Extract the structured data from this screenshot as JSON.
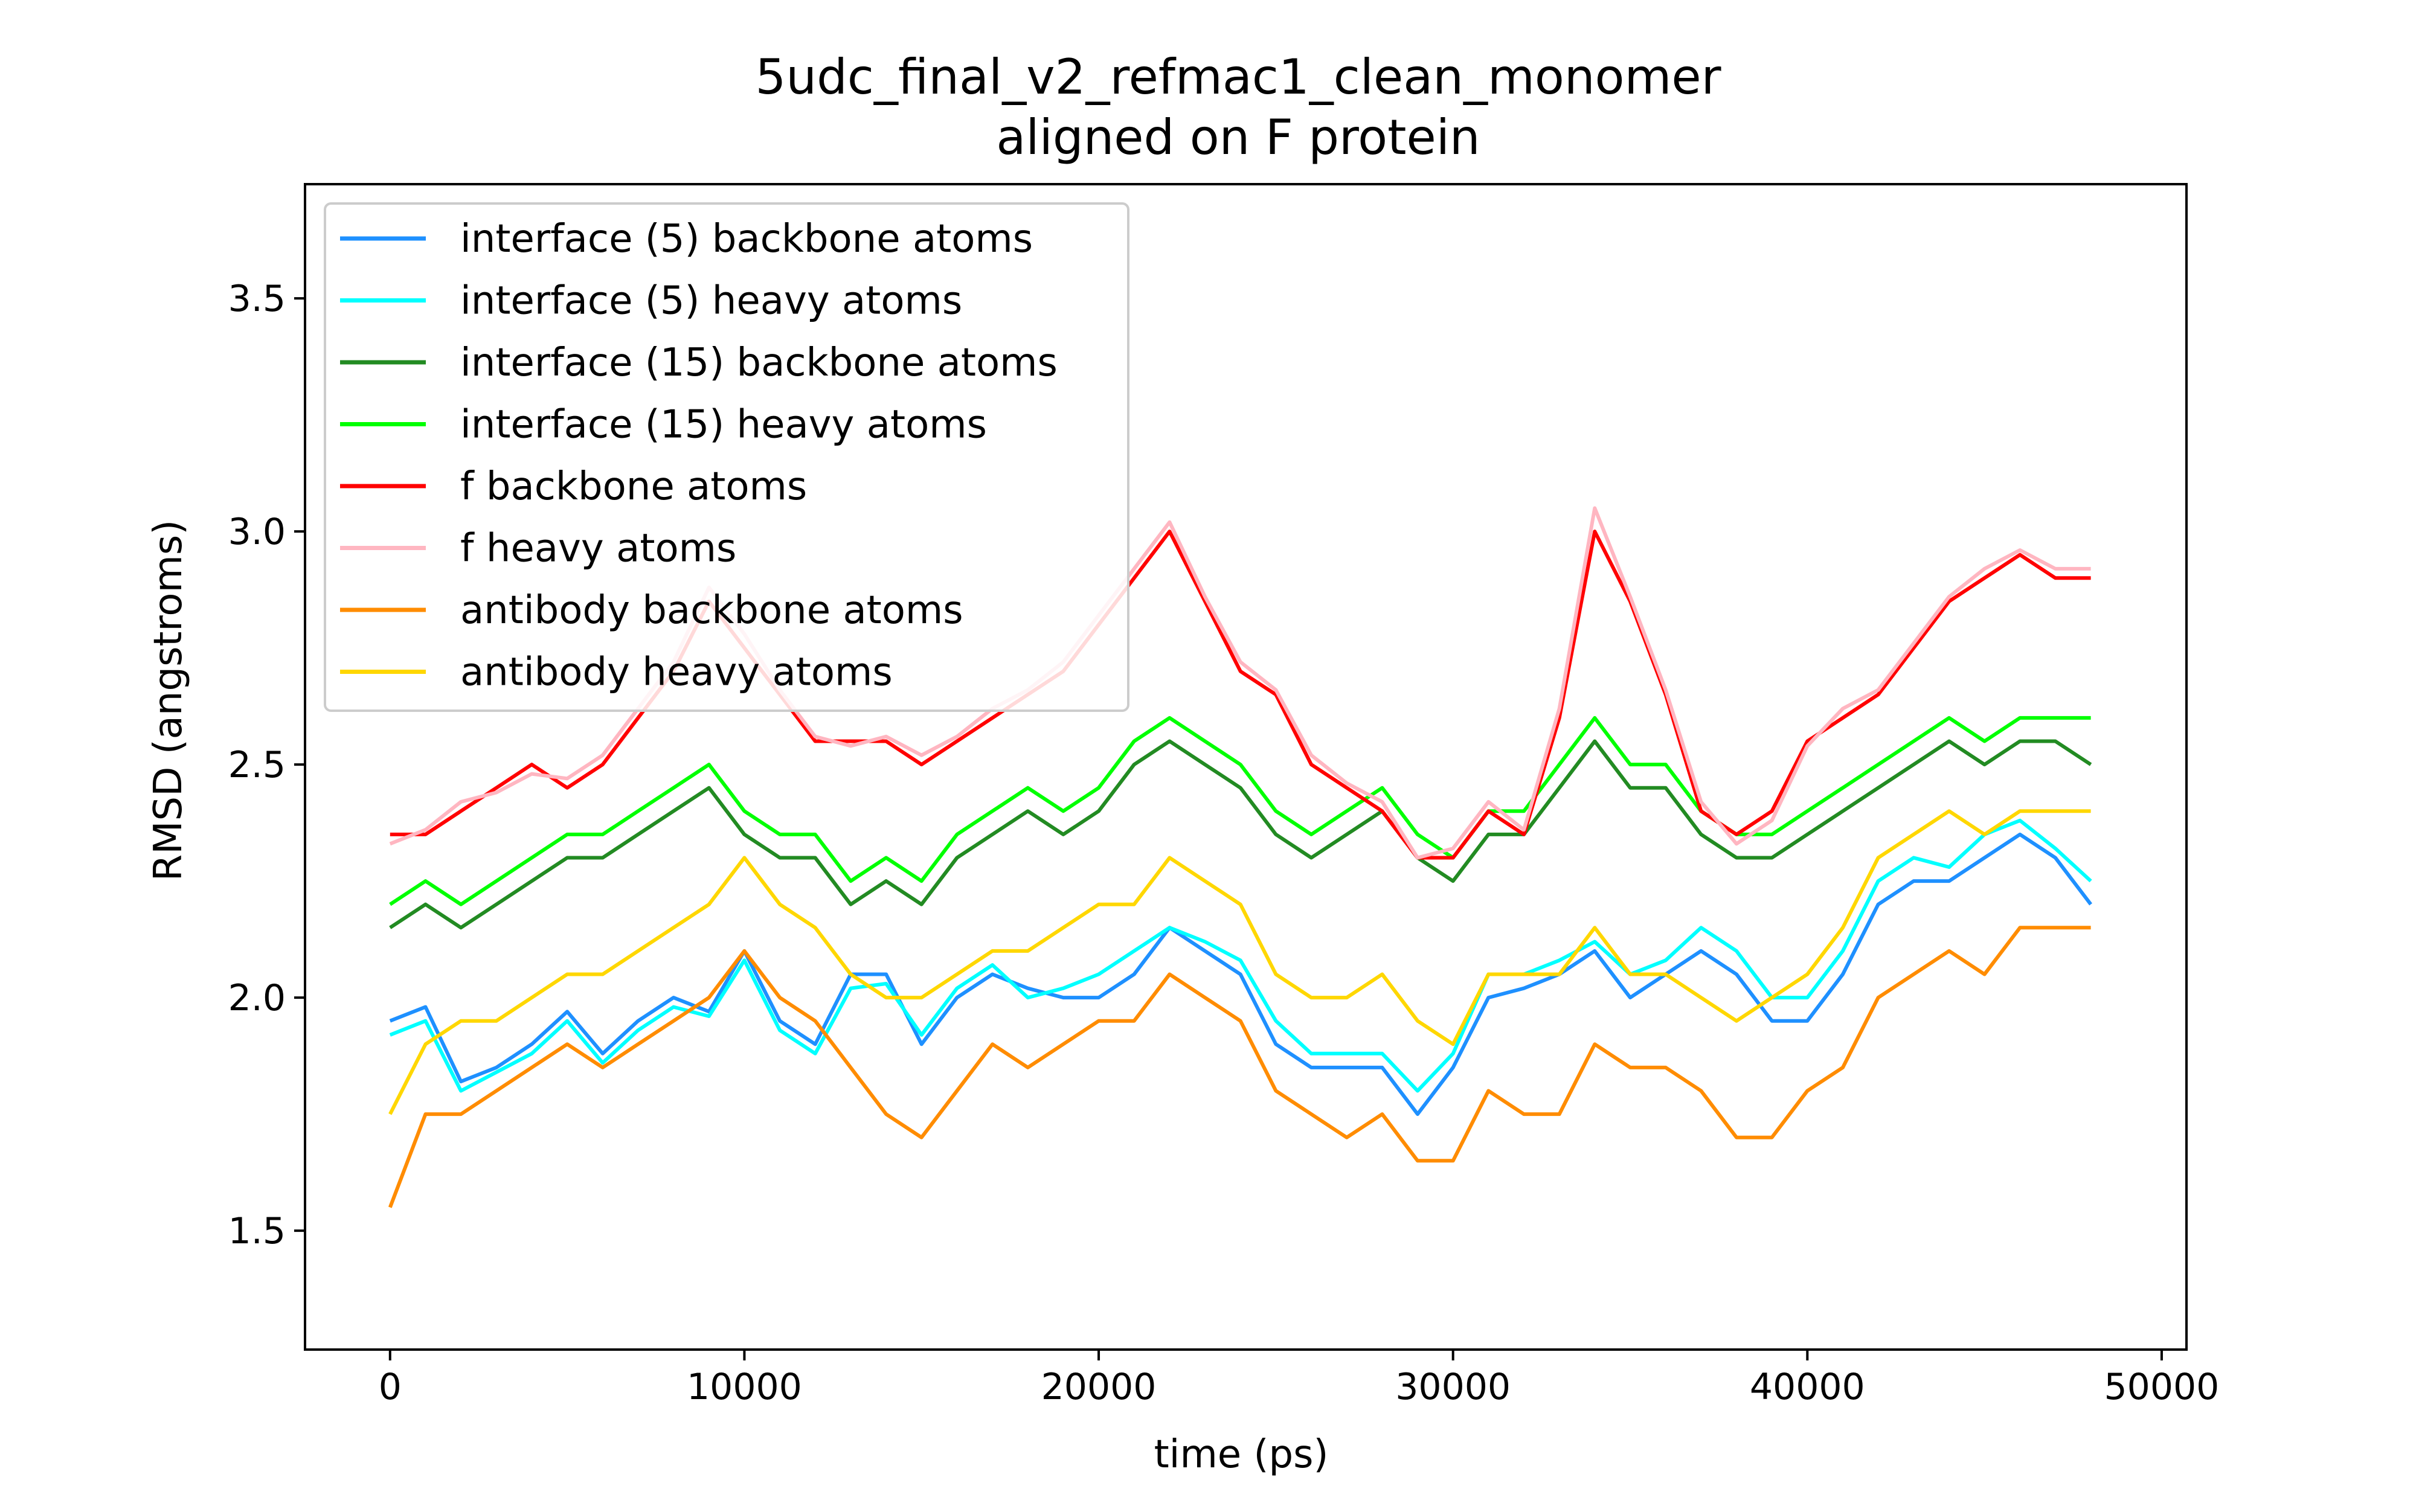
{
  "chart_data": {
    "type": "line",
    "title": "5udc_final_v2_refmac1_clean_monomer",
    "subtitle": "aligned on F protein",
    "xlabel": "time (ps)",
    "ylabel": "RMSD (angstroms)",
    "xlim": [
      -2400,
      50700
    ],
    "ylim": [
      1.245,
      3.745
    ],
    "x_ticks": [
      0,
      10000,
      20000,
      30000,
      40000,
      50000
    ],
    "x_tick_labels": [
      "0",
      "10000",
      "20000",
      "30000",
      "40000",
      "50000"
    ],
    "y_ticks": [
      1.5,
      2.0,
      2.5,
      3.0,
      3.5
    ],
    "y_tick_labels": [
      "1.5",
      "2.0",
      "2.5",
      "3.0",
      "3.5"
    ],
    "grid": false,
    "legend_position": "top-left",
    "sampled_step_ps": 1000,
    "series": [
      {
        "name": "interface (5) backbone atoms",
        "color": "#1e90ff",
        "values": [
          1.95,
          1.98,
          1.82,
          1.85,
          1.9,
          1.97,
          1.88,
          1.95,
          2.0,
          1.97,
          2.1,
          1.95,
          1.9,
          2.05,
          2.05,
          1.9,
          2.0,
          2.05,
          2.02,
          2.0,
          2.0,
          2.05,
          2.15,
          2.1,
          2.05,
          1.9,
          1.85,
          1.85,
          1.85,
          1.75,
          1.85,
          2.0,
          2.02,
          2.05,
          2.1,
          2.0,
          2.05,
          2.1,
          2.05,
          1.95,
          1.95,
          2.05,
          2.2,
          2.25,
          2.25,
          2.3,
          2.35,
          2.3,
          2.2
        ]
      },
      {
        "name": "interface (5) heavy atoms",
        "color": "#00ffff",
        "values": [
          1.92,
          1.95,
          1.8,
          1.84,
          1.88,
          1.95,
          1.86,
          1.93,
          1.98,
          1.96,
          2.08,
          1.93,
          1.88,
          2.02,
          2.03,
          1.92,
          2.02,
          2.07,
          2.0,
          2.02,
          2.05,
          2.1,
          2.15,
          2.12,
          2.08,
          1.95,
          1.88,
          1.88,
          1.88,
          1.8,
          1.88,
          2.05,
          2.05,
          2.08,
          2.12,
          2.05,
          2.08,
          2.15,
          2.1,
          2.0,
          2.0,
          2.1,
          2.25,
          2.3,
          2.28,
          2.35,
          2.38,
          2.32,
          2.25
        ]
      },
      {
        "name": "interface (15) backbone atoms",
        "color": "#228b22",
        "values": [
          2.15,
          2.2,
          2.15,
          2.2,
          2.25,
          2.3,
          2.3,
          2.35,
          2.4,
          2.45,
          2.35,
          2.3,
          2.3,
          2.2,
          2.25,
          2.2,
          2.3,
          2.35,
          2.4,
          2.35,
          2.4,
          2.5,
          2.55,
          2.5,
          2.45,
          2.35,
          2.3,
          2.35,
          2.4,
          2.3,
          2.25,
          2.35,
          2.35,
          2.45,
          2.55,
          2.45,
          2.45,
          2.35,
          2.3,
          2.3,
          2.35,
          2.4,
          2.45,
          2.5,
          2.55,
          2.5,
          2.55,
          2.55,
          2.5
        ]
      },
      {
        "name": "interface (15) heavy atoms",
        "color": "#00ff00",
        "values": [
          2.2,
          2.25,
          2.2,
          2.25,
          2.3,
          2.35,
          2.35,
          2.4,
          2.45,
          2.5,
          2.4,
          2.35,
          2.35,
          2.25,
          2.3,
          2.25,
          2.35,
          2.4,
          2.45,
          2.4,
          2.45,
          2.55,
          2.6,
          2.55,
          2.5,
          2.4,
          2.35,
          2.4,
          2.45,
          2.35,
          2.3,
          2.4,
          2.4,
          2.5,
          2.6,
          2.5,
          2.5,
          2.4,
          2.35,
          2.35,
          2.4,
          2.45,
          2.5,
          2.55,
          2.6,
          2.55,
          2.6,
          2.6,
          2.6
        ]
      },
      {
        "name": "f backbone atoms",
        "color": "#ff0000",
        "values": [
          2.35,
          2.35,
          2.4,
          2.45,
          2.5,
          2.45,
          2.5,
          2.6,
          2.7,
          2.85,
          2.75,
          2.65,
          2.55,
          2.55,
          2.55,
          2.5,
          2.55,
          2.6,
          2.65,
          2.7,
          2.8,
          2.9,
          3.0,
          2.85,
          2.7,
          2.65,
          2.5,
          2.45,
          2.4,
          2.3,
          2.3,
          2.4,
          2.35,
          2.6,
          3.0,
          2.85,
          2.65,
          2.4,
          2.35,
          2.4,
          2.55,
          2.6,
          2.65,
          2.75,
          2.85,
          2.9,
          2.95,
          2.9,
          2.9
        ]
      },
      {
        "name": "f heavy atoms",
        "color": "#ffb6c1",
        "values": [
          2.33,
          2.36,
          2.42,
          2.44,
          2.48,
          2.47,
          2.52,
          2.62,
          2.72,
          2.88,
          2.78,
          2.66,
          2.56,
          2.54,
          2.56,
          2.52,
          2.56,
          2.62,
          2.66,
          2.72,
          2.82,
          2.92,
          3.02,
          2.86,
          2.72,
          2.66,
          2.52,
          2.46,
          2.42,
          2.3,
          2.32,
          2.42,
          2.36,
          2.62,
          3.05,
          2.86,
          2.66,
          2.42,
          2.33,
          2.38,
          2.54,
          2.62,
          2.66,
          2.76,
          2.86,
          2.92,
          2.96,
          2.92,
          2.92
        ]
      },
      {
        "name": "antibody backbone atoms",
        "color": "#ff8c00",
        "values": [
          1.55,
          1.75,
          1.75,
          1.8,
          1.85,
          1.9,
          1.85,
          1.9,
          1.95,
          2.0,
          2.1,
          2.0,
          1.95,
          1.85,
          1.75,
          1.7,
          1.8,
          1.9,
          1.85,
          1.9,
          1.95,
          1.95,
          2.05,
          2.0,
          1.95,
          1.8,
          1.75,
          1.7,
          1.75,
          1.65,
          1.65,
          1.8,
          1.75,
          1.75,
          1.9,
          1.85,
          1.85,
          1.8,
          1.7,
          1.7,
          1.8,
          1.85,
          2.0,
          2.05,
          2.1,
          2.05,
          2.15,
          2.15,
          2.15
        ]
      },
      {
        "name": "antibody heavy atoms",
        "color": "#ffd700",
        "values": [
          1.75,
          1.9,
          1.95,
          1.95,
          2.0,
          2.05,
          2.05,
          2.1,
          2.15,
          2.2,
          2.3,
          2.2,
          2.15,
          2.05,
          2.0,
          2.0,
          2.05,
          2.1,
          2.1,
          2.15,
          2.2,
          2.2,
          2.3,
          2.25,
          2.2,
          2.05,
          2.0,
          2.0,
          2.05,
          1.95,
          1.9,
          2.05,
          2.05,
          2.05,
          2.15,
          2.05,
          2.05,
          2.0,
          1.95,
          2.0,
          2.05,
          2.15,
          2.3,
          2.35,
          2.4,
          2.35,
          2.4,
          2.4,
          2.4
        ]
      }
    ]
  }
}
